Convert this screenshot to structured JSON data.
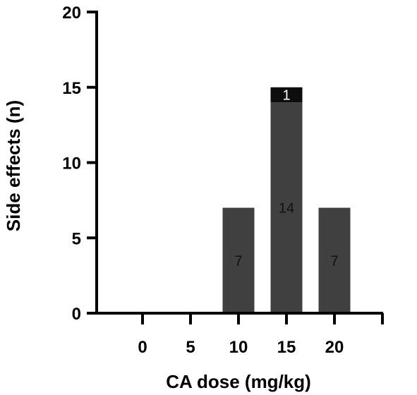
{
  "chart_data": {
    "type": "bar",
    "stacked": true,
    "title": "",
    "xlabel": "CA dose (mg/kg)",
    "ylabel": "Side effects (n)",
    "categories": [
      "0",
      "5",
      "10",
      "15",
      "20",
      ""
    ],
    "ylim": [
      0,
      20
    ],
    "yticks": [
      "0",
      "5",
      "10",
      "15",
      "20"
    ],
    "grid": false,
    "legend": "none",
    "series": [
      {
        "color": "#404040",
        "label_color": "#111111",
        "values": [
          0,
          0,
          7,
          14,
          7,
          0
        ],
        "labels": [
          "",
          "",
          "7",
          "14",
          "7",
          ""
        ]
      },
      {
        "color": "#0d0d0d",
        "label_color": "#ffffff",
        "values": [
          0,
          0,
          0,
          1,
          0,
          0
        ],
        "labels": [
          "",
          "",
          "",
          "1",
          "",
          ""
        ]
      }
    ]
  }
}
